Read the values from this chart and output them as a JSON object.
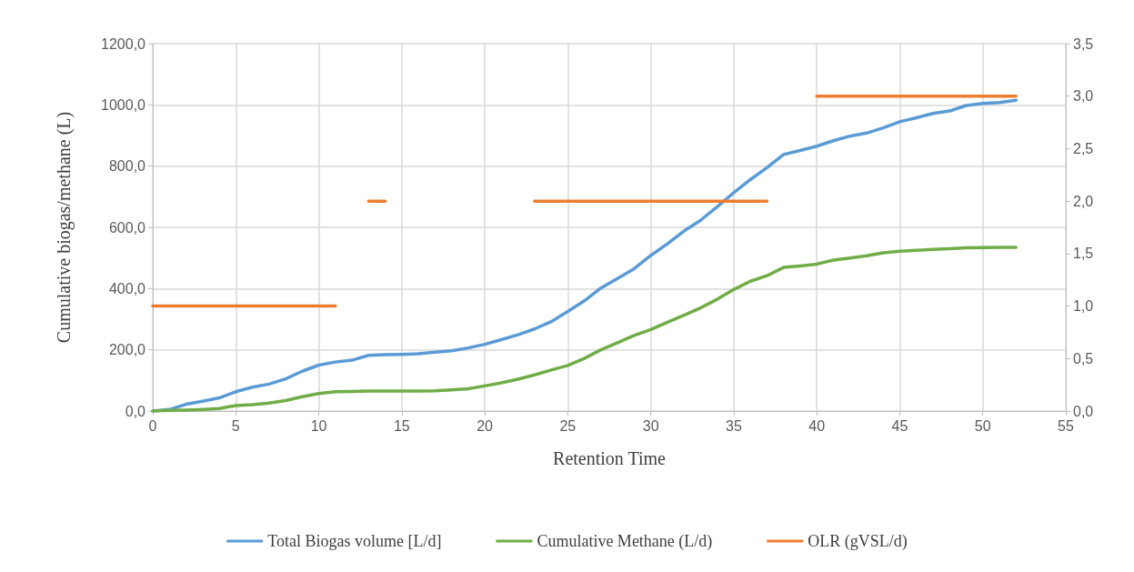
{
  "chart_data": {
    "type": "line",
    "xlabel": "Retention Time",
    "ylabel": "Cumulative biogas/methane (L)",
    "x": [
      0,
      1,
      2,
      3,
      4,
      5,
      6,
      7,
      8,
      9,
      10,
      11,
      12,
      13,
      14,
      15,
      16,
      17,
      18,
      19,
      20,
      21,
      22,
      23,
      24,
      25,
      26,
      27,
      28,
      29,
      30,
      31,
      32,
      33,
      34,
      35,
      36,
      37,
      38,
      39,
      40,
      41,
      42,
      43,
      44,
      45,
      46,
      47,
      48,
      49,
      50,
      51,
      52
    ],
    "series": [
      {
        "name": "Total Biogas volume [L/d]",
        "color": "#5b9bd5",
        "values": [
          0,
          5,
          22,
          32,
          43,
          63,
          78,
          88,
          105,
          130,
          150,
          160,
          166,
          182,
          184,
          185,
          187,
          192,
          197,
          206,
          218,
          233,
          249,
          268,
          292,
          325,
          360,
          402,
          433,
          465,
          508,
          546,
          588,
          623,
          667,
          713,
          756,
          795,
          838,
          851,
          865,
          883,
          898,
          908,
          925,
          945,
          958,
          972,
          980,
          998,
          1005,
          1008,
          1015
        ]
      },
      {
        "name": "Cumulative Methane (L/d)",
        "color": "#70ad47",
        "values": [
          0,
          2,
          3,
          5,
          8,
          18,
          21,
          26,
          34,
          47,
          57,
          63,
          64,
          65,
          65,
          65,
          65,
          66,
          69,
          73,
          82,
          92,
          104,
          118,
          134,
          149,
          172,
          200,
          223,
          247,
          266,
          290,
          313,
          337,
          365,
          397,
          424,
          442,
          469,
          474,
          480,
          493,
          500,
          507,
          517,
          522,
          525,
          528,
          530,
          533,
          534,
          535,
          535
        ]
      },
      {
        "name": "OLR (gVSL/d)",
        "color": "#ed7d31",
        "axis": "y2",
        "x": [
          0,
          11,
          12,
          13,
          14,
          15,
          23,
          37,
          38,
          40,
          52
        ],
        "values": [
          1,
          1,
          null,
          2,
          2,
          null,
          2,
          2,
          null,
          3,
          3
        ]
      }
    ],
    "xlim": [
      0,
      55
    ],
    "xticks": [
      0,
      5,
      10,
      15,
      20,
      25,
      30,
      35,
      40,
      45,
      50,
      55
    ],
    "ylim": [
      0,
      1200
    ],
    "yticks": [
      {
        "value": 0,
        "label": "0,0"
      },
      {
        "value": 200,
        "label": "200,0"
      },
      {
        "value": 400,
        "label": "400,0"
      },
      {
        "value": 600,
        "label": "600,0"
      },
      {
        "value": 800,
        "label": "800,0"
      },
      {
        "value": 1000,
        "label": "1000,0"
      },
      {
        "value": 1200,
        "label": "1200,0"
      }
    ],
    "y2lim": [
      0,
      3.5
    ],
    "y2ticks": [
      {
        "value": 0,
        "label": "0,0"
      },
      {
        "value": 0.5,
        "label": "0,5"
      },
      {
        "value": 1,
        "label": "1,0"
      },
      {
        "value": 1.5,
        "label": "1,5"
      },
      {
        "value": 2,
        "label": "2,0"
      },
      {
        "value": 2.5,
        "label": "2,5"
      },
      {
        "value": 3,
        "label": "3,0"
      },
      {
        "value": 3.5,
        "label": "3,5"
      }
    ],
    "grid": true,
    "legend": "bottom",
    "marker": "none",
    "line_style": "solid"
  }
}
